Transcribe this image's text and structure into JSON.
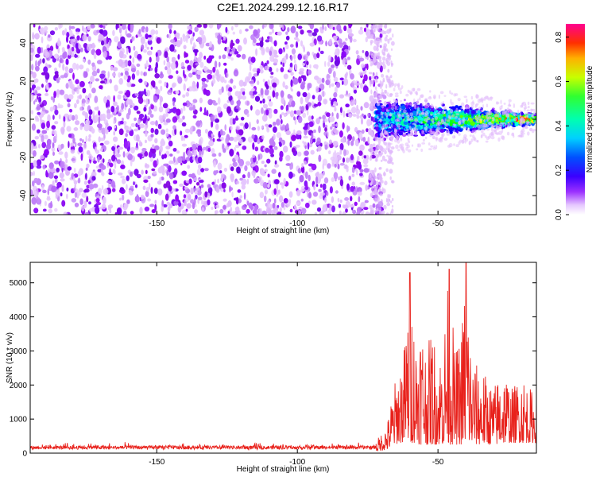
{
  "title": "C2E1.2024.299.12.16.R17",
  "colors": {
    "spectrogram_purple": "#7a1fe0",
    "snr_line": "#e8211b",
    "background": "#ffffff",
    "axis": "#000000"
  },
  "chart_data": [
    {
      "type": "heatmap",
      "title": "C2E1.2024.299.12.16.R17",
      "xlabel": "Height of straight line (km)",
      "ylabel": "Frequency (Hz)",
      "xlim": [
        -195,
        -15
      ],
      "ylim": [
        -50,
        50
      ],
      "x_ticks": [
        -150,
        -100,
        -50
      ],
      "y_ticks": [
        -40,
        -20,
        0,
        20,
        40
      ],
      "grid": false,
      "colorbar": {
        "label": "Normalized spectral amplitude",
        "range": [
          0,
          0.86
        ],
        "ticks": [
          0.0,
          0.2,
          0.4,
          0.6,
          0.8
        ],
        "colormap": "hsv-reversed (purple low → red high)"
      },
      "features": {
        "noise_region_x": [
          -195,
          -72
        ],
        "signal_band": {
          "x_range": [
            -72,
            -15
          ],
          "center_freq_hz": 0,
          "halfwidth_start_hz": 9,
          "halfwidth_end_hz": 2,
          "peak_amplitude_start": 0.35,
          "peak_amplitude_end": 0.85
        }
      }
    },
    {
      "type": "line",
      "xlabel": "Height of straight line (km)",
      "ylabel": "SNR (10 * v/v)",
      "xlim": [
        -195,
        -15
      ],
      "ylim": [
        0,
        5600
      ],
      "x_ticks": [
        -150,
        -100,
        -50
      ],
      "y_ticks": [
        0,
        1000,
        2000,
        3000,
        4000,
        5000
      ],
      "grid": false,
      "anchors": {
        "x": [
          -195,
          -72,
          -68,
          -66,
          -64,
          -62,
          -60,
          -58,
          -56,
          -54,
          -52,
          -50,
          -48,
          -46,
          -44,
          -42,
          -40,
          -38,
          -36,
          -34,
          -32,
          -30,
          -28,
          -26,
          -24,
          -22,
          -20,
          -18,
          -15
        ],
        "y_max": [
          350,
          350,
          900,
          1900,
          2500,
          3200,
          5300,
          3500,
          4100,
          3000,
          3800,
          2700,
          3600,
          5400,
          3000,
          3400,
          5600,
          2800,
          2600,
          2500,
          2100,
          2000,
          2400,
          2500,
          1900,
          2100,
          2400,
          2000,
          1700
        ],
        "y_min": [
          50,
          50,
          100,
          200,
          300,
          300,
          300,
          300,
          250,
          250,
          250,
          250,
          250,
          250,
          250,
          250,
          250,
          250,
          250,
          250,
          250,
          250,
          250,
          300,
          300,
          300,
          300,
          300,
          300
        ]
      },
      "peaks": [
        {
          "x": -60,
          "y": 5300
        },
        {
          "x": -46,
          "y": 5400
        },
        {
          "x": -40,
          "y": 5600
        }
      ]
    }
  ]
}
